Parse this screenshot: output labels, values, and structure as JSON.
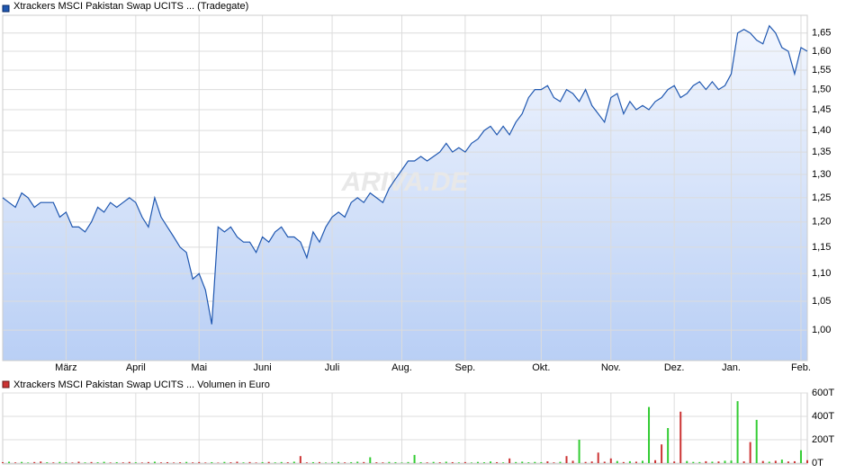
{
  "chart_data": [
    {
      "type": "line",
      "title": "Xtrackers MSCI Pakistan Swap UCITS ... (Tradegate)",
      "watermark": "ARIVA.DE",
      "color": "#1f57b0",
      "log_scale": true,
      "grid": true,
      "categories": [
        null,
        null,
        null,
        null,
        null,
        null,
        null,
        null,
        null,
        null,
        "März",
        null,
        null,
        null,
        null,
        null,
        null,
        null,
        null,
        null,
        null,
        "April",
        null,
        null,
        null,
        null,
        null,
        null,
        null,
        null,
        null,
        "Mai",
        null,
        null,
        null,
        null,
        null,
        null,
        null,
        null,
        null,
        "Juni",
        null,
        null,
        null,
        null,
        null,
        null,
        null,
        null,
        null,
        null,
        "Juli",
        null,
        null,
        null,
        null,
        null,
        null,
        null,
        null,
        null,
        null,
        "Aug.",
        null,
        null,
        null,
        null,
        null,
        null,
        null,
        null,
        null,
        "Sep.",
        null,
        null,
        null,
        null,
        null,
        null,
        null,
        null,
        null,
        null,
        null,
        "Okt.",
        null,
        null,
        null,
        null,
        null,
        null,
        null,
        null,
        null,
        null,
        "Nov.",
        null,
        null,
        null,
        null,
        null,
        null,
        null,
        null,
        null,
        "Dez.",
        null,
        null,
        null,
        null,
        null,
        null,
        null,
        null,
        "Jan.",
        null,
        null,
        null,
        null,
        null,
        null,
        null,
        null,
        null,
        null,
        "Feb.",
        null
      ],
      "values": [
        1.25,
        1.24,
        1.23,
        1.26,
        1.25,
        1.23,
        1.24,
        1.24,
        1.24,
        1.21,
        1.22,
        1.19,
        1.19,
        1.18,
        1.2,
        1.23,
        1.22,
        1.24,
        1.23,
        1.24,
        1.25,
        1.24,
        1.21,
        1.19,
        1.25,
        1.21,
        1.19,
        1.17,
        1.15,
        1.14,
        1.09,
        1.1,
        1.07,
        1.01,
        1.19,
        1.18,
        1.19,
        1.17,
        1.16,
        1.16,
        1.14,
        1.17,
        1.16,
        1.18,
        1.19,
        1.17,
        1.17,
        1.16,
        1.13,
        1.18,
        1.16,
        1.19,
        1.21,
        1.22,
        1.21,
        1.24,
        1.25,
        1.24,
        1.26,
        1.25,
        1.24,
        1.27,
        1.29,
        1.31,
        1.33,
        1.33,
        1.34,
        1.33,
        1.34,
        1.35,
        1.37,
        1.35,
        1.36,
        1.35,
        1.37,
        1.38,
        1.4,
        1.41,
        1.39,
        1.41,
        1.39,
        1.42,
        1.44,
        1.48,
        1.5,
        1.5,
        1.51,
        1.48,
        1.47,
        1.5,
        1.49,
        1.47,
        1.5,
        1.46,
        1.44,
        1.42,
        1.48,
        1.49,
        1.44,
        1.47,
        1.45,
        1.46,
        1.45,
        1.47,
        1.48,
        1.5,
        1.51,
        1.48,
        1.49,
        1.51,
        1.52,
        1.5,
        1.52,
        1.5,
        1.51,
        1.54,
        1.65,
        1.66,
        1.65,
        1.63,
        1.62,
        1.67,
        1.65,
        1.61,
        1.6,
        1.54,
        1.61,
        1.6
      ],
      "ylim": [
        0.95,
        1.7
      ],
      "yticks": [
        {
          "value": 1.0,
          "label": "1,00"
        },
        {
          "value": 1.05,
          "label": "1,05"
        },
        {
          "value": 1.1,
          "label": "1,10"
        },
        {
          "value": 1.15,
          "label": "1,15"
        },
        {
          "value": 1.2,
          "label": "1,20"
        },
        {
          "value": 1.25,
          "label": "1,25"
        },
        {
          "value": 1.3,
          "label": "1,30"
        },
        {
          "value": 1.35,
          "label": "1,35"
        },
        {
          "value": 1.4,
          "label": "1,40"
        },
        {
          "value": 1.45,
          "label": "1,45"
        },
        {
          "value": 1.5,
          "label": "1,50"
        },
        {
          "value": 1.55,
          "label": "1,55"
        },
        {
          "value": 1.6,
          "label": "1,60"
        },
        {
          "value": 1.65,
          "label": "1,65"
        }
      ]
    },
    {
      "type": "bar",
      "title": "Xtrackers MSCI Pakistan Swap UCITS ... Volumen in Euro",
      "grid": true,
      "values": [
        8,
        12,
        6,
        10,
        5,
        9,
        14,
        7,
        6,
        10,
        8,
        5,
        12,
        6,
        9,
        7,
        11,
        5,
        8,
        6,
        10,
        7,
        5,
        9,
        12,
        6,
        8,
        5,
        7,
        10,
        6,
        9,
        5,
        8,
        4,
        10,
        7,
        12,
        6,
        9,
        5,
        8,
        10,
        6,
        9,
        7,
        12,
        60,
        6,
        8,
        9,
        5,
        7,
        10,
        6,
        8,
        12,
        9,
        50,
        7,
        6,
        10,
        8,
        5,
        9,
        70,
        8,
        6,
        10,
        7,
        12,
        8,
        6,
        9,
        5,
        10,
        7,
        14,
        8,
        6,
        40,
        9,
        12,
        7,
        10,
        8,
        15,
        6,
        11,
        60,
        20,
        200,
        10,
        14,
        90,
        12,
        40,
        18,
        9,
        16,
        12,
        20,
        480,
        25,
        160,
        300,
        14,
        440,
        18,
        10,
        9,
        16,
        12,
        14,
        20,
        22,
        530,
        15,
        180,
        370,
        18,
        12,
        20,
        30,
        14,
        16,
        110,
        25
      ],
      "colors": [
        "#c33",
        "#3c3",
        "#c33",
        "#3c3",
        "#3c3",
        "#c33",
        "#c33",
        "#3c3",
        "#c33",
        "#3c3",
        "#3c3",
        "#c33",
        "#c33",
        "#3c3",
        "#c33",
        "#3c3",
        "#3c3",
        "#c33",
        "#3c3",
        "#c33",
        "#c33",
        "#3c3",
        "#c33",
        "#c33",
        "#3c3",
        "#c33",
        "#c33",
        "#c33",
        "#c33",
        "#3c3",
        "#c33",
        "#c33",
        "#c33",
        "#3c3",
        "#c33",
        "#3c3",
        "#c33",
        "#c33",
        "#3c3",
        "#c33",
        "#c33",
        "#3c3",
        "#c33",
        "#3c3",
        "#3c3",
        "#c33",
        "#3c3",
        "#c33",
        "#c33",
        "#3c3",
        "#c33",
        "#3c3",
        "#3c3",
        "#3c3",
        "#c33",
        "#3c3",
        "#3c3",
        "#c33",
        "#3c3",
        "#c33",
        "#c33",
        "#3c3",
        "#3c3",
        "#3c3",
        "#3c3",
        "#3c3",
        "#3c3",
        "#c33",
        "#3c3",
        "#c33",
        "#3c3",
        "#c33",
        "#3c3",
        "#c33",
        "#3c3",
        "#3c3",
        "#3c3",
        "#3c3",
        "#c33",
        "#3c3",
        "#c33",
        "#3c3",
        "#3c3",
        "#3c3",
        "#3c3",
        "#3c3",
        "#c33",
        "#c33",
        "#3c3",
        "#c33",
        "#c33",
        "#3c3",
        "#c33",
        "#c33",
        "#c33",
        "#c33",
        "#c33",
        "#3c3",
        "#c33",
        "#3c3",
        "#c33",
        "#3c3",
        "#3c3",
        "#c33",
        "#c33",
        "#3c3",
        "#c33",
        "#c33",
        "#3c3",
        "#3c3",
        "#3c3",
        "#c33",
        "#3c3",
        "#c33",
        "#3c3",
        "#3c3",
        "#3c3",
        "#c33",
        "#c33",
        "#3c3",
        "#c33",
        "#3c3",
        "#c33",
        "#3c3",
        "#c33",
        "#c33",
        "#3c3",
        "#c33"
      ],
      "ylim": [
        0,
        600
      ],
      "yticks": [
        {
          "value": 0,
          "label": "0T"
        },
        {
          "value": 200,
          "label": "200T"
        },
        {
          "value": 400,
          "label": "400T"
        },
        {
          "value": 600,
          "label": "600T"
        }
      ]
    }
  ]
}
